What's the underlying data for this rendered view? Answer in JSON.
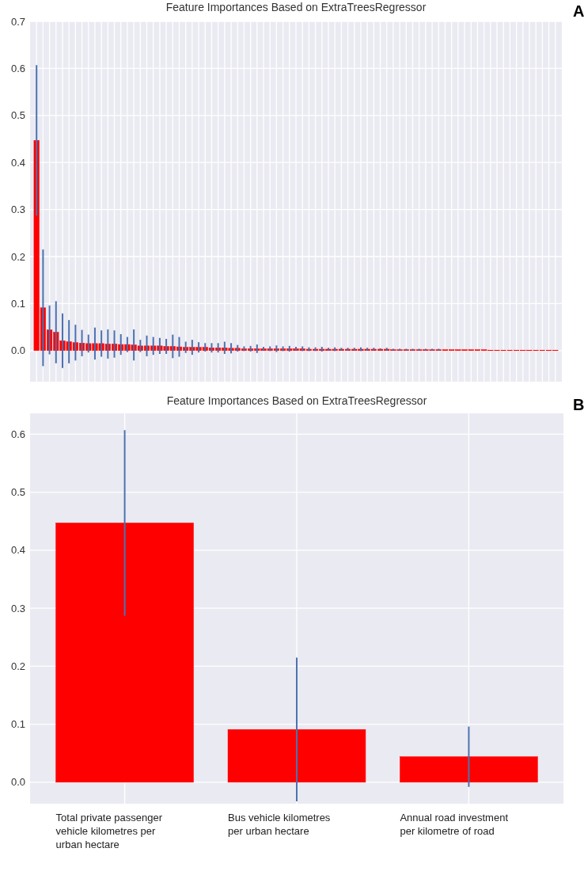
{
  "chart_data": [
    {
      "type": "bar",
      "title": "Feature Importances Based on ExtraTreesRegressor",
      "annotations": [
        "A"
      ],
      "tick_labels": "y",
      "grid": true,
      "color": "#ff0000",
      "categories": [
        null,
        null,
        null,
        null,
        null,
        null,
        null,
        null,
        null,
        null,
        null,
        null,
        null,
        null,
        null,
        null,
        null,
        null,
        null,
        null,
        null,
        null,
        null,
        null,
        null,
        null,
        null,
        null,
        null,
        null,
        null,
        null,
        null,
        null,
        null,
        null,
        null,
        null,
        null,
        null,
        null,
        null,
        null,
        null,
        null,
        null,
        null,
        null,
        null,
        null,
        null,
        null,
        null,
        null,
        null,
        null,
        null,
        null,
        null,
        null,
        null,
        null,
        null,
        null,
        null,
        null,
        null,
        null,
        null,
        null,
        null,
        null,
        null,
        null,
        null,
        null,
        null,
        null,
        null,
        null,
        null
      ],
      "values": [
        0.447,
        0.091,
        0.044,
        0.039,
        0.021,
        0.019,
        0.017,
        0.016,
        0.015,
        0.015,
        0.015,
        0.014,
        0.014,
        0.013,
        0.013,
        0.012,
        0.01,
        0.01,
        0.01,
        0.01,
        0.009,
        0.009,
        0.008,
        0.007,
        0.007,
        0.007,
        0.007,
        0.006,
        0.006,
        0.006,
        0.005,
        0.005,
        0.004,
        0.004,
        0.004,
        0.004,
        0.004,
        0.004,
        0.004,
        0.004,
        0.004,
        0.004,
        0.003,
        0.003,
        0.003,
        0.003,
        0.003,
        0.003,
        0.003,
        0.003,
        0.003,
        0.003,
        0.003,
        0.003,
        0.003,
        0.002,
        0.002,
        0.002,
        0.002,
        0.002,
        0.002,
        0.002,
        0.002,
        0.002,
        0.002,
        0.002,
        0.002,
        0.002,
        0.002,
        0.002,
        0.001,
        0.001,
        0.001,
        0.001,
        0.001,
        0.001,
        0.001,
        0.001,
        0.001,
        0.001,
        0.001
      ],
      "errors": [
        0.16,
        0.124,
        0.052,
        0.066,
        0.058,
        0.046,
        0.038,
        0.028,
        0.019,
        0.034,
        0.028,
        0.031,
        0.029,
        0.022,
        0.016,
        0.033,
        0.013,
        0.022,
        0.019,
        0.017,
        0.016,
        0.025,
        0.021,
        0.012,
        0.016,
        0.011,
        0.009,
        0.01,
        0.01,
        0.013,
        0.011,
        0.007,
        0.005,
        0.006,
        0.009,
        0.004,
        0.005,
        0.007,
        0.005,
        0.006,
        0.004,
        0.005,
        0.004,
        0.004,
        0.005,
        0.003,
        0.004,
        0.003,
        0.003,
        0.003,
        0.004,
        0.003,
        0.003,
        0.002,
        0.003,
        0.002,
        0.002,
        0.002,
        0.002,
        0.002,
        0.002,
        0.002,
        0.002,
        null,
        null,
        null,
        null,
        null,
        null,
        null,
        null,
        null,
        null,
        null,
        null,
        null,
        null,
        null,
        null,
        null,
        null
      ],
      "ylim": [
        -0.066,
        0.7
      ],
      "yticks": [
        {
          "value": 0,
          "label": "0.0"
        },
        {
          "value": 0.1,
          "label": "0.1"
        },
        {
          "value": 0.2,
          "label": "0.2"
        },
        {
          "value": 0.3,
          "label": "0.3"
        },
        {
          "value": 0.4,
          "label": "0.4"
        },
        {
          "value": 0.5,
          "label": "0.5"
        },
        {
          "value": 0.6,
          "label": "0.6"
        },
        {
          "value": 0.7,
          "label": "0.7"
        }
      ]
    },
    {
      "type": "bar",
      "title": "Feature Importances Based on ExtraTreesRegressor",
      "annotations": [
        "B"
      ],
      "grid": true,
      "color": "#ff0000",
      "categories": [
        "Total private passenger vehicle kilometres per urban hectare",
        "Bus vehicle kilometres per urban hectare",
        "Annual road investment per kilometre of road"
      ],
      "values": [
        0.447,
        0.091,
        0.044
      ],
      "errors": [
        0.16,
        0.124,
        0.052
      ],
      "ylim": [
        -0.037,
        0.636
      ],
      "yticks": [
        {
          "value": 0,
          "label": "0.0"
        },
        {
          "value": 0.1,
          "label": "0.1"
        },
        {
          "value": 0.2,
          "label": "0.2"
        },
        {
          "value": 0.3,
          "label": "0.3"
        },
        {
          "value": 0.4,
          "label": "0.4"
        },
        {
          "value": 0.5,
          "label": "0.5"
        },
        {
          "value": 0.6,
          "label": "0.6"
        }
      ]
    }
  ]
}
